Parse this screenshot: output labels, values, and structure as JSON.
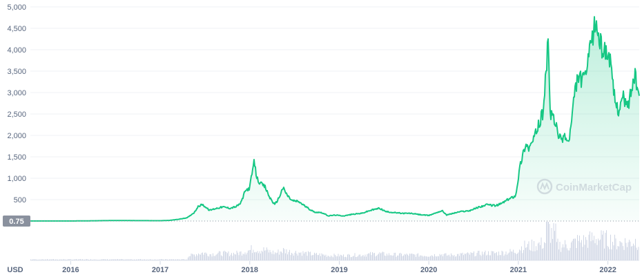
{
  "chart_data": {
    "type": "line",
    "currency": "USD",
    "watermark": "CoinMarketCap",
    "current_price_label": "0.75",
    "colors": {
      "line": "#16c784",
      "area": "#16c784",
      "grid": "#eff2f5",
      "volume": "#cfd6e4",
      "price_badge": "#8a919e",
      "text": "#58667e"
    },
    "ylim": [
      0,
      5000
    ],
    "ytick_labels": [
      "500",
      "1,000",
      "1,500",
      "2,000",
      "2,500",
      "3,000",
      "3,500",
      "4,000",
      "4,500",
      "5,000"
    ],
    "ytick_values": [
      500,
      1000,
      1500,
      2000,
      2500,
      3000,
      3500,
      4000,
      4500,
      5000
    ],
    "xlim": [
      2015.55,
      2022.35
    ],
    "xtick_labels": [
      "2016",
      "2017",
      "2018",
      "2019",
      "2020",
      "2021",
      "2022"
    ],
    "xtick_values": [
      2016,
      2017,
      2018,
      2019,
      2020,
      2021,
      2022
    ],
    "grid": true,
    "x": [
      2015.55,
      2016.0,
      2016.5,
      2017.0,
      2017.1,
      2017.2,
      2017.3,
      2017.38,
      2017.42,
      2017.47,
      2017.55,
      2017.63,
      2017.7,
      2017.78,
      2017.85,
      2017.9,
      2017.95,
      2018.0,
      2018.02,
      2018.05,
      2018.08,
      2018.12,
      2018.17,
      2018.22,
      2018.28,
      2018.33,
      2018.37,
      2018.42,
      2018.47,
      2018.55,
      2018.65,
      2018.72,
      2018.8,
      2018.88,
      2018.95,
      2019.05,
      2019.15,
      2019.25,
      2019.35,
      2019.45,
      2019.52,
      2019.6,
      2019.7,
      2019.8,
      2019.9,
      2020.0,
      2020.1,
      2020.15,
      2020.2,
      2020.25,
      2020.35,
      2020.45,
      2020.55,
      2020.65,
      2020.75,
      2020.8,
      2020.9,
      2020.97,
      2021.02,
      2021.08,
      2021.12,
      2021.17,
      2021.22,
      2021.27,
      2021.3,
      2021.33,
      2021.36,
      2021.38,
      2021.42,
      2021.47,
      2021.52,
      2021.56,
      2021.6,
      2021.63,
      2021.67,
      2021.72,
      2021.77,
      2021.82,
      2021.86,
      2021.9,
      2021.93,
      2021.97,
      2022.02,
      2022.05,
      2022.08,
      2022.12,
      2022.17,
      2022.22,
      2022.27,
      2022.3,
      2022.35
    ],
    "values": [
      1,
      1,
      12,
      8,
      15,
      40,
      75,
      200,
      330,
      390,
      250,
      300,
      330,
      300,
      340,
      420,
      700,
      780,
      1050,
      1380,
      1000,
      870,
      800,
      560,
      380,
      560,
      780,
      600,
      480,
      450,
      300,
      210,
      200,
      120,
      140,
      120,
      160,
      180,
      250,
      300,
      220,
      200,
      180,
      180,
      150,
      130,
      210,
      240,
      140,
      170,
      220,
      240,
      320,
      380,
      360,
      400,
      520,
      600,
      1300,
      1800,
      1700,
      1900,
      2200,
      2500,
      3200,
      4150,
      2400,
      2500,
      2200,
      1900,
      2000,
      1800,
      2400,
      3000,
      3400,
      3250,
      3600,
      4200,
      4650,
      4300,
      4050,
      4000,
      3800,
      3250,
      2800,
      2600,
      2900,
      2650,
      3150,
      3400,
      2900
    ],
    "volume_note": "relative trading volume bars along the bottom band"
  }
}
